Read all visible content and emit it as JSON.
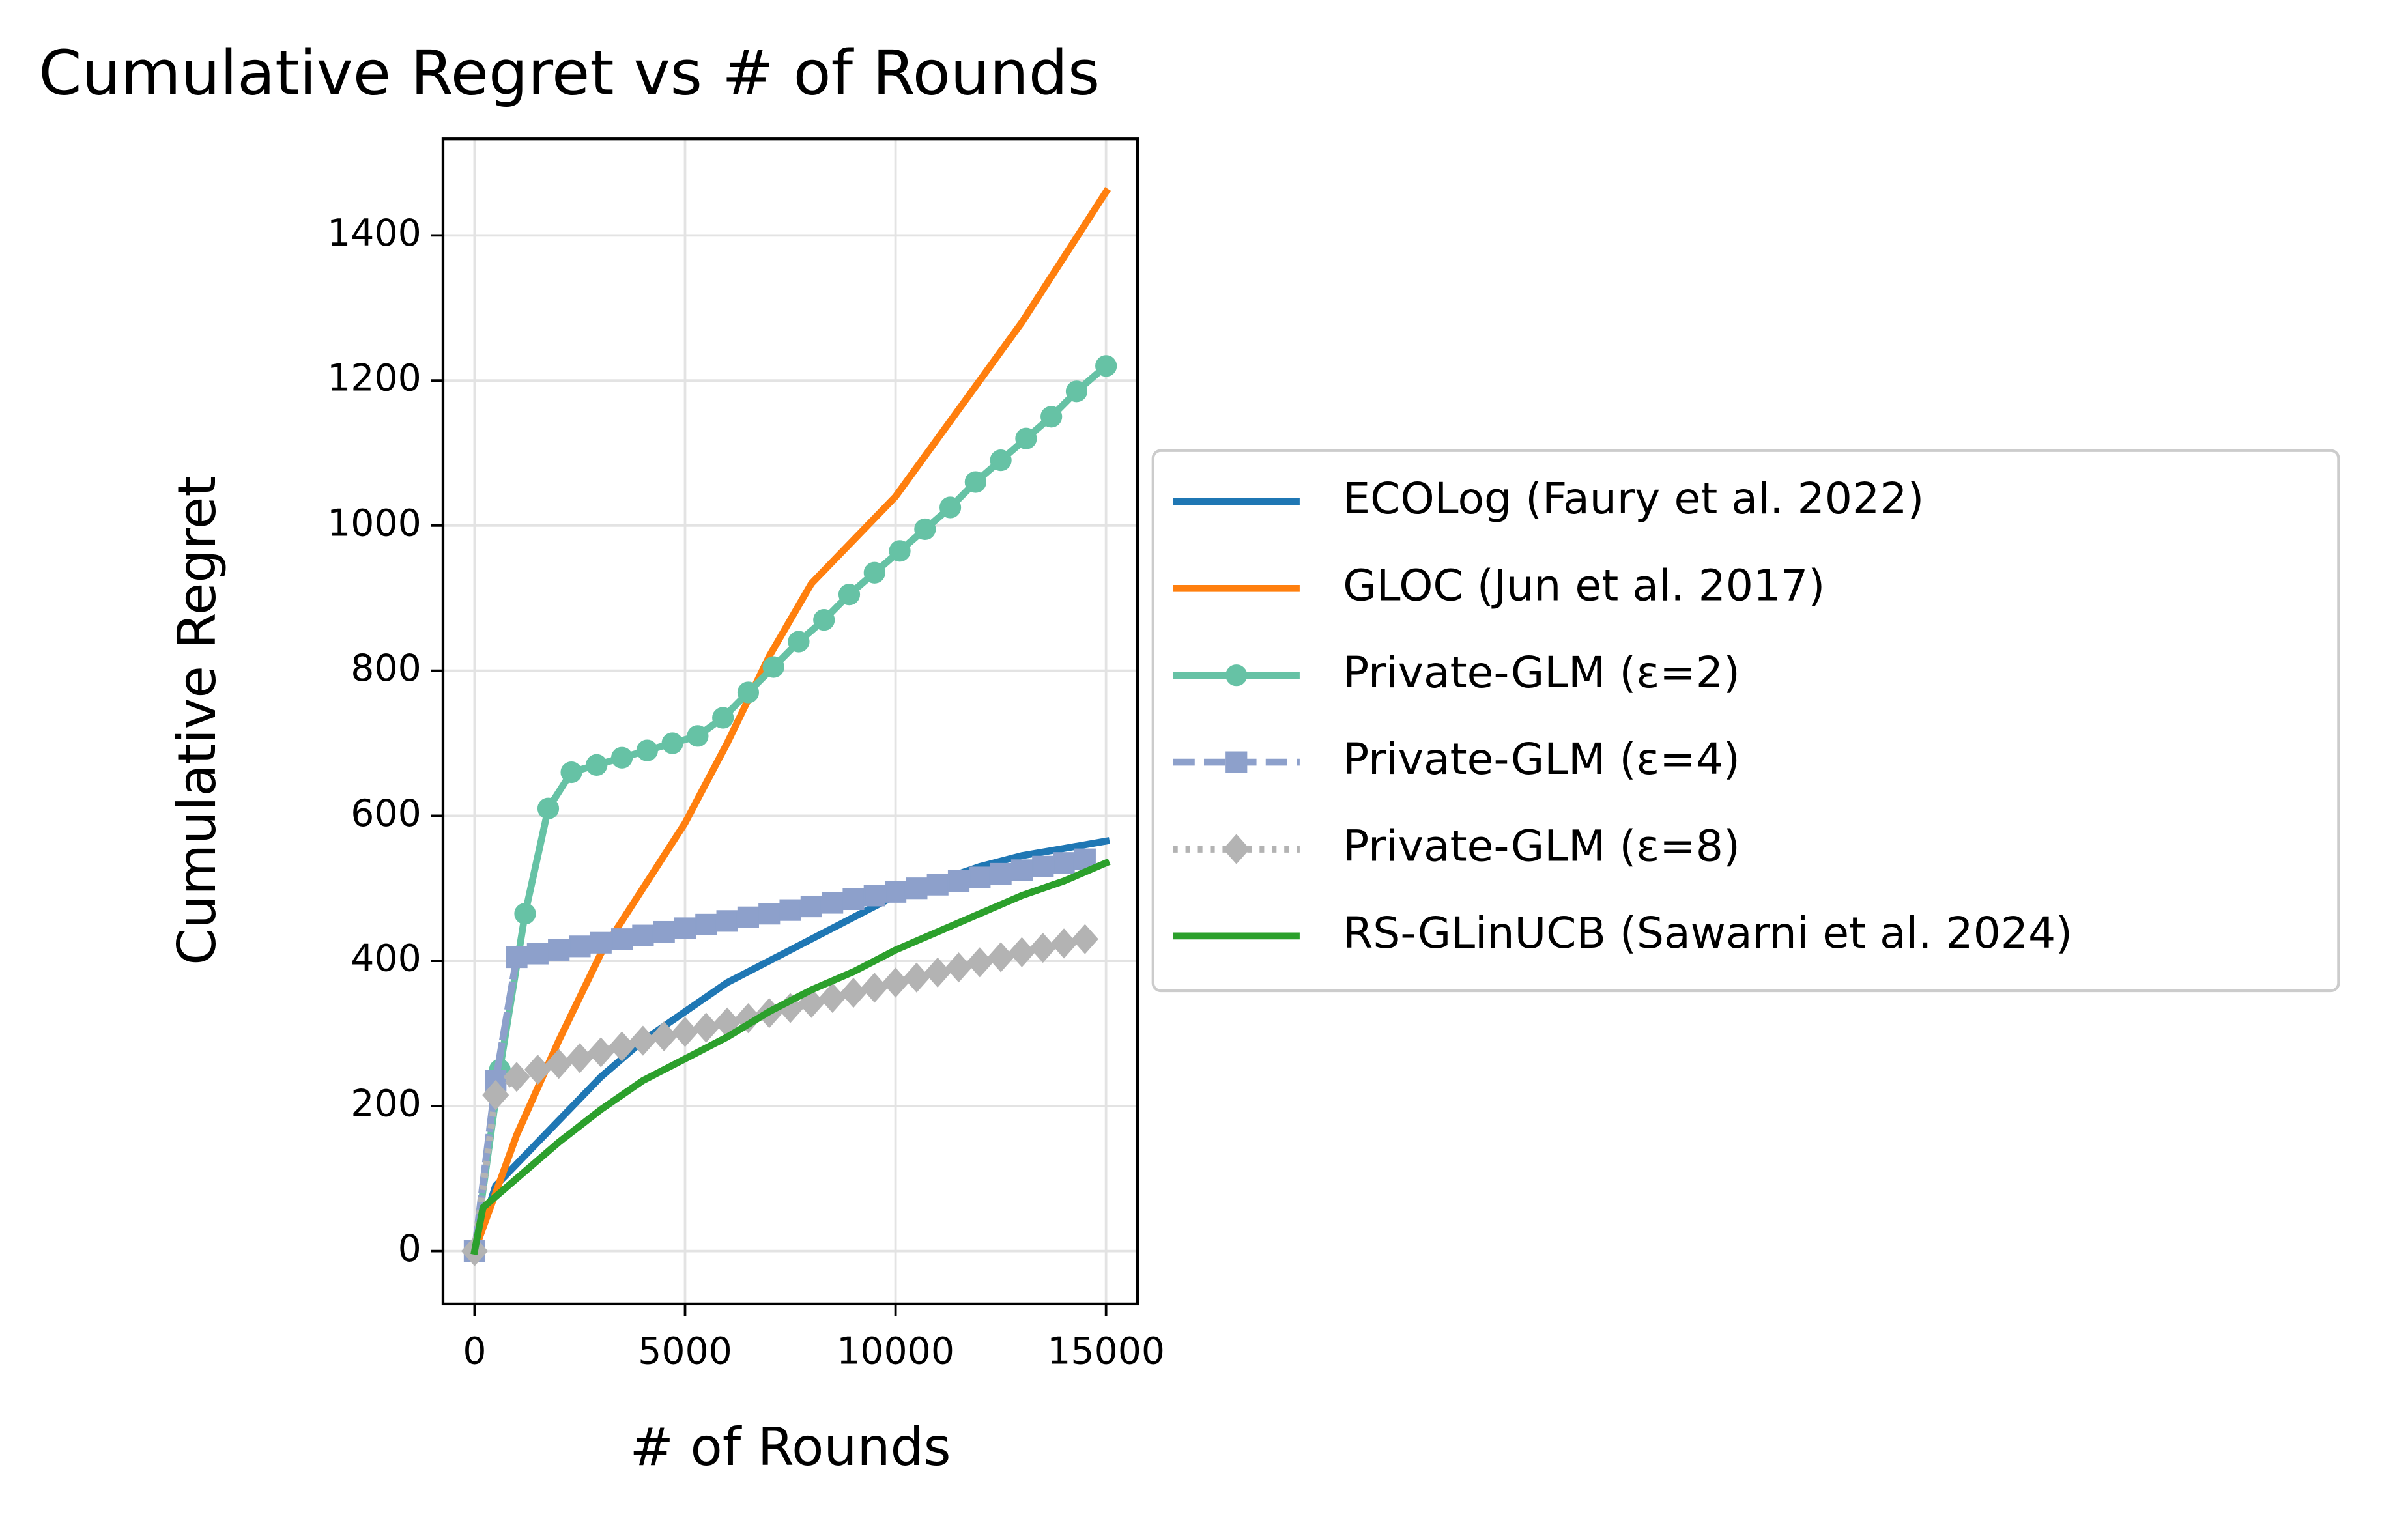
{
  "chart_data": {
    "type": "line",
    "title": "Cumulative Regret vs # of Rounds",
    "x_label": "# of Rounds",
    "y_label": "Cumulative Regret",
    "xlim": [
      -750,
      15750
    ],
    "xticks": [
      0,
      5000,
      10000,
      15000
    ],
    "ylim": [
      -73,
      1533
    ],
    "yticks": [
      0,
      200,
      400,
      600,
      800,
      1000,
      1200,
      1400
    ],
    "grid": true,
    "legend": "outside right",
    "series": [
      {
        "name": "ECOLog (Faury et al. 2022)",
        "color": "#1f77b4",
        "linestyle": "solid",
        "marker": "none",
        "x": [
          0,
          500,
          1000,
          2000,
          3000,
          4000,
          5000,
          6000,
          7000,
          8000,
          9000,
          10000,
          11000,
          12000,
          13000,
          14000,
          15000
        ],
        "values": [
          0,
          90,
          120,
          180,
          240,
          290,
          330,
          370,
          400,
          430,
          460,
          490,
          510,
          530,
          545,
          555,
          565
        ]
      },
      {
        "name": "GLOC (Jun et al. 2017)",
        "color": "#ff7f0e",
        "linestyle": "solid",
        "marker": "none",
        "x": [
          0,
          1000,
          2000,
          3000,
          4000,
          5000,
          6000,
          7000,
          8000,
          9000,
          10000,
          11000,
          12000,
          13000,
          14000,
          15000
        ],
        "values": [
          0,
          160,
          290,
          410,
          500,
          590,
          700,
          820,
          920,
          980,
          1040,
          1120,
          1200,
          1280,
          1370,
          1460
        ]
      },
      {
        "name": "Private-GLM (ε=2)",
        "color": "#66c2a5",
        "linestyle": "solid",
        "marker": "circle",
        "x": [
          0,
          600,
          1200,
          1750,
          2300,
          2900,
          3500,
          4100,
          4700,
          5300,
          5900,
          6500,
          7100,
          7700,
          8300,
          8900,
          9500,
          10100,
          10700,
          11300,
          11900,
          12500,
          13100,
          13700,
          14300,
          15000
        ],
        "values": [
          0,
          250,
          465,
          610,
          660,
          670,
          680,
          690,
          700,
          710,
          735,
          770,
          805,
          840,
          870,
          905,
          935,
          965,
          995,
          1025,
          1060,
          1090,
          1120,
          1150,
          1185,
          1220
        ]
      },
      {
        "name": "Private-GLM (ε=4)",
        "color": "#8da0cb",
        "linestyle": "dashed",
        "marker": "square",
        "x": [
          0,
          500,
          1000,
          1500,
          2000,
          2500,
          3000,
          3500,
          4000,
          4500,
          5000,
          5500,
          6000,
          6500,
          7000,
          7500,
          8000,
          8500,
          9000,
          9500,
          10000,
          10500,
          11000,
          11500,
          12000,
          12500,
          13000,
          13500,
          14000,
          14500
        ],
        "values": [
          0,
          235,
          405,
          410,
          415,
          420,
          425,
          430,
          435,
          440,
          445,
          450,
          455,
          460,
          465,
          470,
          475,
          480,
          485,
          490,
          495,
          500,
          505,
          510,
          515,
          520,
          525,
          530,
          535,
          540
        ]
      },
      {
        "name": "Private-GLM (ε=8)",
        "color": "#b3b3b3",
        "linestyle": "dotted",
        "marker": "diamond",
        "x": [
          0,
          500,
          1000,
          1500,
          2000,
          2500,
          3000,
          3500,
          4000,
          4500,
          5000,
          5500,
          6000,
          6500,
          7000,
          7500,
          8000,
          8500,
          9000,
          9500,
          10000,
          10500,
          11000,
          11500,
          12000,
          12500,
          13000,
          13500,
          14000,
          14500
        ],
        "values": [
          0,
          215,
          240,
          250,
          258,
          266,
          274,
          282,
          290,
          296,
          302,
          308,
          315,
          321,
          328,
          335,
          342,
          349,
          356,
          363,
          370,
          377,
          384,
          391,
          398,
          405,
          412,
          418,
          424,
          430
        ]
      },
      {
        "name": "RS-GLinUCB (Sawarni et al. 2024)",
        "color": "#2ca02c",
        "linestyle": "solid",
        "marker": "none",
        "x": [
          0,
          200,
          1000,
          2000,
          3000,
          4000,
          5000,
          6000,
          7000,
          8000,
          9000,
          10000,
          11000,
          12000,
          13000,
          14000,
          15000
        ],
        "values": [
          0,
          60,
          100,
          150,
          195,
          235,
          265,
          295,
          330,
          360,
          385,
          415,
          440,
          465,
          490,
          510,
          535
        ]
      }
    ]
  }
}
